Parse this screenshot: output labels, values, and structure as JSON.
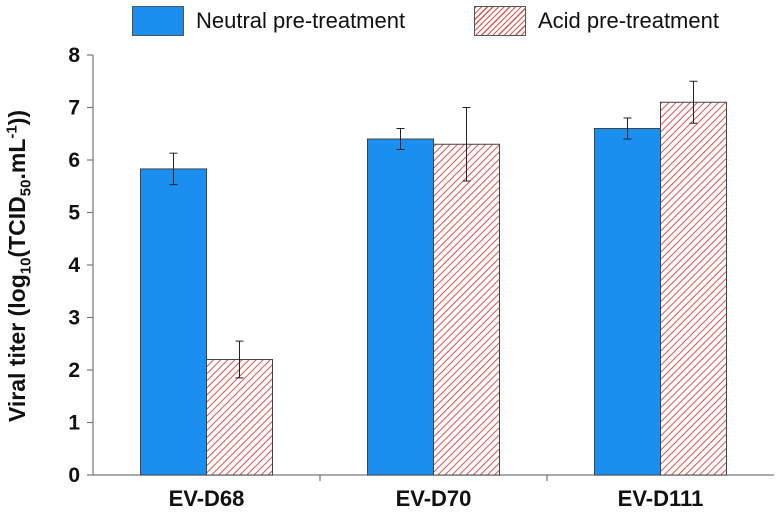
{
  "chart_data": {
    "type": "bar",
    "categories": [
      "EV-D68",
      "EV-D70",
      "EV-D111"
    ],
    "series": [
      {
        "name": "Neutral pre-treatment",
        "values": [
          5.83,
          6.4,
          6.6
        ],
        "errors": [
          0.3,
          0.2,
          0.2
        ],
        "color": "#1a8ff0",
        "pattern": "solid"
      },
      {
        "name": "Acid pre-treatment",
        "values": [
          2.2,
          6.3,
          7.1
        ],
        "errors": [
          0.35,
          0.7,
          0.4
        ],
        "color": "#d9534f",
        "pattern": "diagonal-hatch"
      }
    ],
    "xlabel": "",
    "ylabel": {
      "prefix": "Viral titer (log",
      "sub1": "10",
      "mid": "(TCID",
      "sub2": "50",
      "mid2": ".mL",
      "sup": "-1",
      "suffix": "))"
    },
    "ylim": [
      0,
      8
    ],
    "yticks": [
      0,
      1,
      2,
      3,
      4,
      5,
      6,
      7,
      8
    ],
    "grid": false,
    "legend_position": "top"
  }
}
